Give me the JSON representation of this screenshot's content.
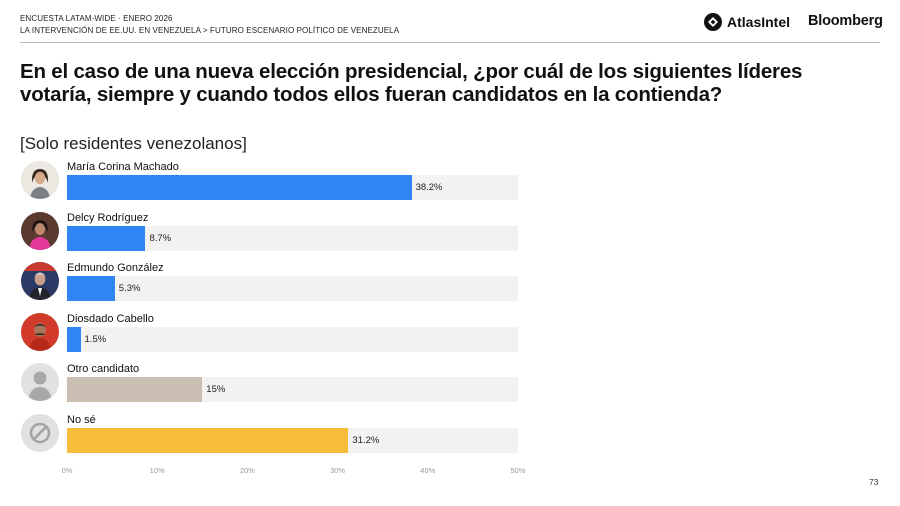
{
  "header": {
    "line1": "ENCUESTA LATAM-WIDE · ENERO 2026",
    "line2": "LA INTERVENCIÓN DE EE.UU. EN VENEZUELA > FUTURO ESCENARIO POLÍTICO DE VENEZUELA",
    "brand_atlas": "AtlasIntel",
    "brand_bloomberg": "Bloomberg"
  },
  "page_number": "73",
  "colors": {
    "blue": "#2e86f5",
    "taupe": "#cbbfb4",
    "yellow": "#f7bd3a",
    "track": "#f3f2f0"
  },
  "chart_data": {
    "type": "bar",
    "orientation": "horizontal",
    "title": "En el caso de una nueva elección presidencial, ¿por cuál de los siguientes líderes votaría, siempre y cuando todos ellos fueran candidatos en la contienda?",
    "subtitle": "[Solo residentes venezolanos]",
    "unit": "%",
    "xlim": [
      0,
      50
    ],
    "ticks": [
      0,
      10,
      20,
      30,
      40,
      50
    ],
    "tick_labels": [
      "0%",
      "10%",
      "20%",
      "30%",
      "40%",
      "50%"
    ],
    "categories": [
      "María Corina Machado",
      "Delcy Rodríguez",
      "Edmundo González",
      "Diosdado Cabello",
      "Otro candidato",
      "No sé"
    ],
    "values": [
      38.2,
      8.7,
      5.3,
      1.5,
      15,
      31.2
    ],
    "value_labels": [
      "38.2%",
      "8.7%",
      "5.3%",
      "1.5%",
      "15%",
      "31.2%"
    ],
    "bar_colors": [
      "blue",
      "blue",
      "blue",
      "blue",
      "taupe",
      "yellow"
    ],
    "icons": [
      "photo-machado-icon",
      "photo-rodriguez-icon",
      "photo-gonzalez-icon",
      "photo-cabello-icon",
      "generic-person-icon",
      "no-sign-icon"
    ]
  }
}
